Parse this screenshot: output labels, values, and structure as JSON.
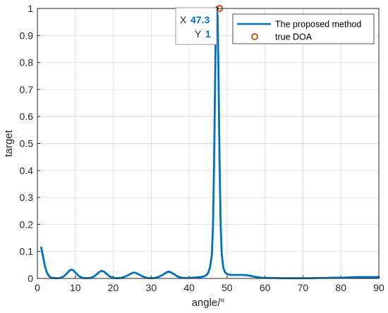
{
  "chart_data": {
    "type": "line",
    "xlabel": "angle/°",
    "ylabel": "target",
    "xlim": [
      0,
      90
    ],
    "ylim": [
      0,
      1
    ],
    "x_ticks": [
      0,
      10,
      20,
      30,
      40,
      50,
      60,
      70,
      80,
      90
    ],
    "y_ticks": [
      0,
      0.1,
      0.2,
      0.3,
      0.4,
      0.5,
      0.6,
      0.7,
      0.8,
      0.9,
      1
    ],
    "y_tick_labels": [
      "0",
      "0.1",
      "0.2",
      "0.3",
      "0.4",
      "0.5",
      "0.6",
      "0.7",
      "0.8",
      "0.9",
      "1"
    ],
    "grid": true,
    "legend_position": "top-right",
    "series": [
      {
        "name": "The proposed method",
        "color": "#0072BD",
        "x": [
          1,
          1.5,
          2,
          2.5,
          3,
          3.5,
          4,
          5,
          6,
          7,
          8,
          8.5,
          9,
          9.5,
          10,
          11,
          12,
          13,
          14,
          15,
          16,
          16.5,
          17,
          17.5,
          18,
          19,
          20,
          21,
          22,
          23,
          24,
          25,
          25.5,
          26,
          27,
          28,
          29,
          30,
          31,
          32,
          33,
          34,
          34.5,
          35,
          36,
          37,
          38,
          39,
          40,
          41,
          42,
          43,
          44,
          44.5,
          45,
          45.5,
          46,
          46.3,
          46.6,
          46.9,
          47.1,
          47.3,
          47.5,
          47.7,
          48,
          48.3,
          48.6,
          49,
          49.5,
          50,
          51,
          52,
          53,
          54,
          55,
          56,
          57,
          58,
          59,
          60,
          62,
          64,
          66,
          68,
          70,
          72,
          74,
          76,
          78,
          80,
          82,
          84,
          86,
          88,
          90
        ],
        "y": [
          0.115,
          0.08,
          0.045,
          0.022,
          0.01,
          0.004,
          0.002,
          0.001,
          0.002,
          0.008,
          0.022,
          0.03,
          0.033,
          0.03,
          0.022,
          0.008,
          0.002,
          0.001,
          0.002,
          0.008,
          0.02,
          0.026,
          0.028,
          0.026,
          0.02,
          0.008,
          0.002,
          0.001,
          0.002,
          0.006,
          0.013,
          0.02,
          0.022,
          0.02,
          0.013,
          0.006,
          0.002,
          0.001,
          0.002,
          0.006,
          0.013,
          0.022,
          0.025,
          0.024,
          0.016,
          0.007,
          0.003,
          0.002,
          0.002,
          0.003,
          0.004,
          0.005,
          0.008,
          0.012,
          0.02,
          0.04,
          0.09,
          0.2,
          0.45,
          0.8,
          0.97,
          1,
          0.97,
          0.8,
          0.45,
          0.2,
          0.09,
          0.04,
          0.022,
          0.016,
          0.013,
          0.013,
          0.013,
          0.013,
          0.012,
          0.01,
          0.007,
          0.005,
          0.003,
          0.002,
          0.002,
          0.001,
          0.001,
          0.001,
          0.001,
          0.001,
          0.002,
          0.002,
          0.003,
          0.003,
          0.004,
          0.005,
          0.005,
          0.005,
          0.005
        ]
      },
      {
        "name": "true DOA",
        "color": "#D95319",
        "marker": "circle",
        "x": [
          48
        ],
        "y": [
          1
        ]
      }
    ],
    "datatip": {
      "x_key": "X",
      "x_value": "47.3",
      "y_key": "Y",
      "y_value": "1"
    }
  }
}
